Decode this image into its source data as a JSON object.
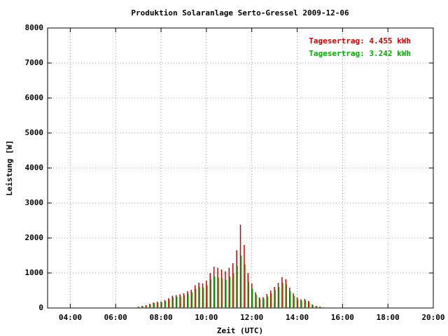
{
  "chart_data": {
    "type": "impulse",
    "title": "Produktion Solaranlage Serto-Gressel 2009-12-06",
    "xlabel": "Zeit (UTC)",
    "ylabel": "Leistung [W]",
    "xlim": [
      180,
      1200
    ],
    "ylim": [
      0,
      8000
    ],
    "xticks": [
      {
        "value": 240,
        "label": "04:00"
      },
      {
        "value": 360,
        "label": "06:00"
      },
      {
        "value": 480,
        "label": "08:00"
      },
      {
        "value": 600,
        "label": "10:00"
      },
      {
        "value": 720,
        "label": "12:00"
      },
      {
        "value": 840,
        "label": "14:00"
      },
      {
        "value": 960,
        "label": "16:00"
      },
      {
        "value": 1080,
        "label": "18:00"
      },
      {
        "value": 1200,
        "label": "20:00"
      }
    ],
    "yticks": [
      0,
      1000,
      2000,
      3000,
      4000,
      5000,
      6000,
      7000,
      8000
    ],
    "grid": true,
    "legend": "upper right",
    "x": [
      420,
      430,
      440,
      450,
      460,
      470,
      480,
      490,
      500,
      510,
      520,
      530,
      540,
      550,
      560,
      570,
      580,
      590,
      600,
      610,
      620,
      630,
      640,
      650,
      660,
      670,
      680,
      690,
      700,
      710,
      720,
      730,
      740,
      750,
      760,
      770,
      780,
      790,
      800,
      810,
      820,
      830,
      840,
      850,
      860,
      870,
      880,
      890,
      900,
      910
    ],
    "series": [
      {
        "name": "Tagesertrag: 4.455 kWh",
        "color": "#cc0000",
        "values": [
          40,
          60,
          80,
          120,
          160,
          180,
          190,
          230,
          280,
          350,
          370,
          390,
          420,
          480,
          520,
          650,
          720,
          700,
          780,
          1000,
          1180,
          1150,
          1100,
          1050,
          1150,
          1280,
          1650,
          2380,
          1800,
          1000,
          700,
          450,
          300,
          310,
          400,
          500,
          600,
          720,
          880,
          820,
          580,
          420,
          300,
          250,
          260,
          200,
          100,
          60,
          40,
          20
        ]
      },
      {
        "name": "Tagesertrag: 3.242 kWh",
        "color": "#00aa00",
        "values": [
          30,
          50,
          70,
          100,
          140,
          150,
          160,
          200,
          240,
          300,
          320,
          330,
          360,
          410,
          450,
          550,
          600,
          590,
          650,
          820,
          900,
          870,
          850,
          800,
          900,
          1000,
          1200,
          1500,
          1250,
          750,
          550,
          380,
          260,
          270,
          330,
          420,
          500,
          600,
          720,
          680,
          480,
          350,
          250,
          210,
          220,
          170,
          85,
          50,
          35,
          15
        ]
      }
    ]
  }
}
